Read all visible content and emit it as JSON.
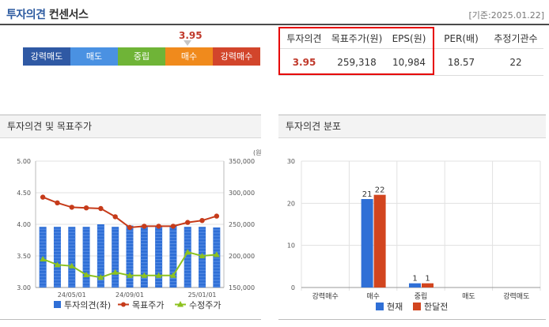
{
  "header": {
    "title": "투자의견",
    "subtitle": "컨센서스",
    "date": "[기준:2025.01.22]"
  },
  "opinion_scale": {
    "current_value": "3.95",
    "current_level": 3.95,
    "levels": [
      {
        "label": "강력매도",
        "color": "#2f59a4"
      },
      {
        "label": "매도",
        "color": "#4a91e2"
      },
      {
        "label": "중립",
        "color": "#6fb437"
      },
      {
        "label": "매수",
        "color": "#f08a1c"
      },
      {
        "label": "강력매수",
        "color": "#d2452b"
      }
    ]
  },
  "consensus_table": {
    "headers": [
      "투자의견",
      "목표주가(원)",
      "EPS(원)",
      "PER(배)",
      "추정기관수"
    ],
    "values": [
      "3.95",
      "259,318",
      "10,984",
      "18.57",
      "22"
    ]
  },
  "panel_left": {
    "title": "투자의견 및 목표주가"
  },
  "panel_right": {
    "title": "투자의견 분포"
  },
  "chart_data": [
    {
      "type": "bar+line",
      "title": "투자의견 및 목표주가",
      "y_left": {
        "ticks": [
          "5.00",
          "4.50",
          "4.00",
          "3.50",
          "3.00"
        ],
        "range": [
          3.0,
          5.0
        ]
      },
      "y_right": {
        "unit": "(원)",
        "ticks": [
          "350,000",
          "300,000",
          "250,000",
          "200,000",
          "150,000"
        ],
        "range": [
          150000,
          350000
        ]
      },
      "x_tick_labels": [
        "24/05/01",
        "24/09/01",
        "25/01/01"
      ],
      "opinion_bars": [
        3.96,
        3.96,
        3.96,
        3.96,
        4.0,
        3.96,
        3.98,
        3.98,
        3.98,
        3.98,
        3.96,
        3.96,
        3.95
      ],
      "target_price": [
        293000,
        284000,
        277000,
        276000,
        275000,
        262000,
        245000,
        247000,
        247000,
        247000,
        253000,
        256000,
        263000
      ],
      "adjusted_price": [
        195000,
        186000,
        184000,
        170000,
        166000,
        174000,
        169000,
        169000,
        169000,
        169000,
        206000,
        200000,
        202000
      ],
      "legend": [
        {
          "name": "투자의견(좌)",
          "color": "#2f6fd6",
          "shape": "square"
        },
        {
          "name": "목표주가",
          "color": "#c63b1a",
          "shape": "circle-line"
        },
        {
          "name": "수정주가",
          "color": "#8dc21f",
          "shape": "triangle-line"
        }
      ]
    },
    {
      "type": "bar",
      "title": "투자의견 분포",
      "categories": [
        "강력매수",
        "매수",
        "중립",
        "매도",
        "강력매도"
      ],
      "ylim": [
        0,
        30
      ],
      "y_ticks": [
        "30",
        "20",
        "10",
        "0"
      ],
      "series": [
        {
          "name": "현재",
          "color": "#2f6fd6",
          "values": [
            0,
            21,
            1,
            0,
            0
          ]
        },
        {
          "name": "한달전",
          "color": "#d2451f",
          "values": [
            0,
            22,
            1,
            0,
            0
          ]
        }
      ]
    }
  ]
}
